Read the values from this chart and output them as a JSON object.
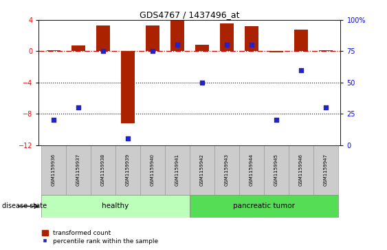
{
  "title": "GDS4767 / 1437496_at",
  "samples": [
    "GSM1159936",
    "GSM1159937",
    "GSM1159938",
    "GSM1159939",
    "GSM1159940",
    "GSM1159941",
    "GSM1159942",
    "GSM1159943",
    "GSM1159944",
    "GSM1159945",
    "GSM1159946",
    "GSM1159947"
  ],
  "red_bars": [
    0.1,
    0.7,
    3.3,
    -9.2,
    3.3,
    3.9,
    0.8,
    3.6,
    3.2,
    -0.1,
    2.8,
    0.1
  ],
  "blue_dots_pct": [
    20,
    30,
    75,
    5,
    75,
    80,
    50,
    80,
    80,
    20,
    60,
    30
  ],
  "left_ylim": [
    -12,
    4
  ],
  "right_ylim": [
    0,
    100
  ],
  "left_yticks": [
    4,
    0,
    -4,
    -8,
    -12
  ],
  "right_yticks": [
    100,
    75,
    50,
    25,
    0
  ],
  "bar_color": "#aa2200",
  "dot_color": "#2222cc",
  "hline_color": "#cc0000",
  "dotted_line_color": "#000000",
  "healthy_color": "#bbffbb",
  "tumor_color": "#55dd55",
  "xticklabel_bg": "#cccccc",
  "healthy_label": "healthy",
  "tumor_label": "pancreatic tumor",
  "disease_state_label": "disease state",
  "legend_red": "transformed count",
  "legend_blue": "percentile rank within the sample",
  "healthy_count": 6,
  "tumor_count": 6,
  "bar_width": 0.55
}
